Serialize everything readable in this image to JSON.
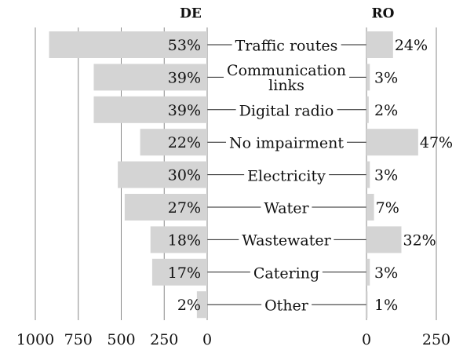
{
  "chart_data": [
    {
      "type": "bar",
      "orientation": "horizontal",
      "direction": "reversed",
      "title": "DE",
      "categories": [
        "Traffic routes",
        "Communication\nlinks",
        "Digital radio",
        "No impairment",
        "Electricity",
        "Water",
        "Wastewater",
        "Catering",
        "Other"
      ],
      "values": [
        920,
        660,
        660,
        390,
        520,
        480,
        330,
        320,
        60
      ],
      "labels": [
        "53%",
        "39%",
        "39%",
        "22%",
        "30%",
        "27%",
        "18%",
        "17%",
        "2%"
      ],
      "color": "#d4d4d4",
      "xlim": [
        0,
        1000
      ],
      "xticks": [
        0,
        250,
        500,
        750,
        1000
      ],
      "grid": true
    },
    {
      "type": "bar",
      "orientation": "horizontal",
      "direction": "normal",
      "title": "RO",
      "values": [
        95,
        12,
        8,
        185,
        12,
        27,
        125,
        12,
        4
      ],
      "labels": [
        "24%",
        "3%",
        "2%",
        "47%",
        "3%",
        "7%",
        "32%",
        "3%",
        "1%"
      ],
      "color": "#d4d4d4",
      "xlim": [
        0,
        250
      ],
      "xticks": [
        0,
        250
      ],
      "grid": true
    }
  ]
}
